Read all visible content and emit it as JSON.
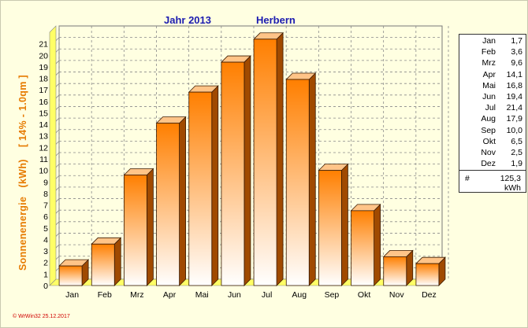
{
  "header": {
    "year_label": "Jahr  2013",
    "location": "Herbern"
  },
  "footer": {
    "copyright": "© WrWin32  25.12.2017"
  },
  "chart_data": {
    "type": "bar",
    "title": "Jahr  2013",
    "subtitle": "Herbern",
    "ylabel": "Sonnenenergie   (kWh)    [ 14% - 1.0qm ]",
    "xlabel": "",
    "categories": [
      "Jan",
      "Feb",
      "Mrz",
      "Apr",
      "Mai",
      "Jun",
      "Jul",
      "Aug",
      "Sep",
      "Okt",
      "Nov",
      "Dez"
    ],
    "values": [
      1.7,
      3.6,
      9.6,
      14.1,
      16.8,
      19.4,
      21.4,
      17.9,
      10.0,
      6.5,
      2.5,
      1.9
    ],
    "ylim": [
      0,
      22
    ],
    "yticks": [
      0,
      1,
      2,
      3,
      4,
      5,
      6,
      7,
      8,
      9,
      10,
      11,
      12,
      13,
      14,
      15,
      16,
      17,
      18,
      19,
      20,
      21
    ],
    "grid": true,
    "legend_position": "right",
    "colors": {
      "bar_top": "#ff7f00",
      "bar_bottom": "#ffffff",
      "bar_side": "#a04a00",
      "bar_cap": "#ffc488",
      "floor": "#ffff66",
      "axis_text": "#000000",
      "title": "#1b1bb0",
      "ylabel": "#e67a00"
    }
  },
  "legend": {
    "rows": [
      {
        "month": "Jan",
        "value": "1,7"
      },
      {
        "month": "Feb",
        "value": "3,6"
      },
      {
        "month": "Mrz",
        "value": "9,6"
      },
      {
        "month": "Apr",
        "value": "14,1"
      },
      {
        "month": "Mai",
        "value": "16,8"
      },
      {
        "month": "Jun",
        "value": "19,4"
      },
      {
        "month": "Jul",
        "value": "21,4"
      },
      {
        "month": "Aug",
        "value": "17,9"
      },
      {
        "month": "Sep",
        "value": "10,0"
      },
      {
        "month": "Okt",
        "value": "6,5"
      },
      {
        "month": "Nov",
        "value": "2,5"
      },
      {
        "month": "Dez",
        "value": "1,9"
      }
    ],
    "total_symbol": "#",
    "total_value": "125,3",
    "total_unit": "kWh"
  }
}
